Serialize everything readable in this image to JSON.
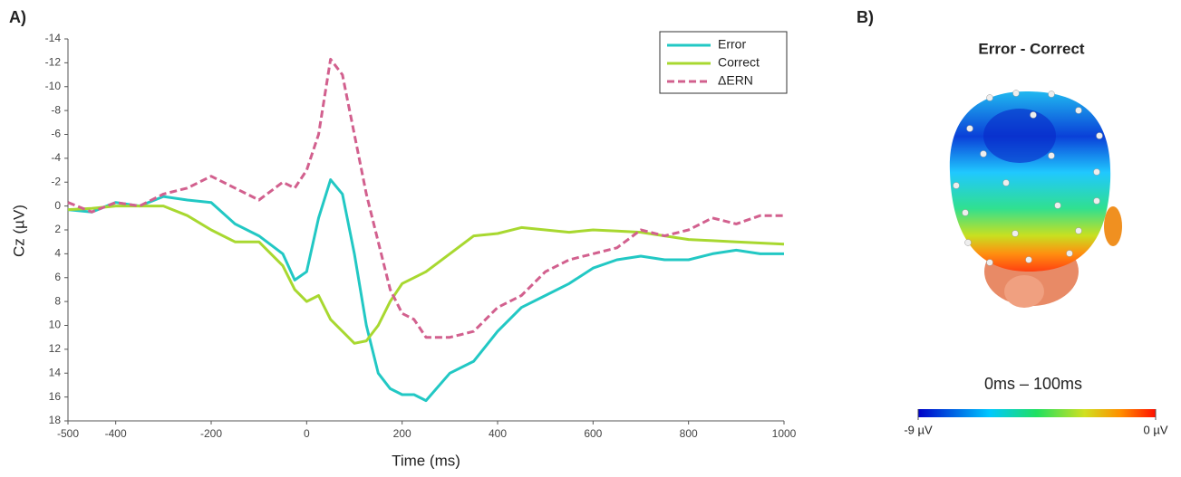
{
  "chart_data": [
    {
      "type": "line",
      "panel_label": "A)",
      "xlabel": "Time (ms)",
      "ylabel": "Cz (µV)",
      "x": [
        -500,
        -450,
        -400,
        -350,
        -300,
        -250,
        -200,
        -150,
        -100,
        -50,
        -25,
        0,
        25,
        50,
        75,
        100,
        125,
        150,
        175,
        200,
        225,
        250,
        300,
        350,
        400,
        450,
        500,
        550,
        600,
        650,
        700,
        750,
        800,
        850,
        900,
        950,
        1000
      ],
      "series": [
        {
          "name": "Error",
          "color": "#22c8c4",
          "dashed": false,
          "values": [
            0.3,
            0.5,
            -0.3,
            0,
            -0.8,
            -0.5,
            -0.3,
            1.5,
            2.5,
            4,
            6.2,
            5.5,
            1,
            -2.2,
            -1,
            4,
            10,
            14,
            15.3,
            15.8,
            15.8,
            16.3,
            14,
            13,
            10.5,
            8.5,
            7.5,
            6.5,
            5.2,
            4.5,
            4.2,
            4.5,
            4.5,
            4,
            3.7,
            4,
            4
          ]
        },
        {
          "name": "Correct",
          "color": "#a8d830",
          "dashed": false,
          "values": [
            0.3,
            0.2,
            0,
            0,
            0,
            0.8,
            2,
            3,
            3,
            5,
            7,
            8,
            7.5,
            9.5,
            10.5,
            11.5,
            11.3,
            10,
            8,
            6.5,
            6,
            5.5,
            4,
            2.5,
            2.3,
            1.8,
            2,
            2.2,
            2,
            2.1,
            2.2,
            2.5,
            2.8,
            2.9,
            3,
            3.1,
            3.2
          ]
        },
        {
          "name": "ΔERN",
          "color": "#d2608e",
          "dashed": true,
          "values": [
            -0.3,
            0.5,
            -0.3,
            0,
            -1,
            -1.5,
            -2.5,
            -1.5,
            -0.5,
            -2,
            -1.5,
            -3,
            -6,
            -12.3,
            -11,
            -6,
            -1,
            3,
            7,
            9,
            9.5,
            11,
            11,
            10.5,
            8.5,
            7.5,
            5.5,
            4.5,
            4,
            3.5,
            2,
            2.5,
            2,
            1,
            1.5,
            0.8,
            0.8
          ]
        }
      ],
      "xlim": [
        -500,
        1000
      ],
      "xticks": [
        -500,
        -400,
        -200,
        0,
        200,
        400,
        600,
        800,
        1000
      ],
      "ylim": [
        -14,
        18
      ],
      "yticks": [
        -14,
        -12,
        -10,
        -8,
        -6,
        -4,
        -2,
        0,
        2,
        4,
        6,
        8,
        10,
        12,
        14,
        16,
        18
      ],
      "y_inverted": true,
      "legend": "upper right"
    },
    {
      "type": "topomap",
      "panel_label": "B)",
      "title": "Error - Correct",
      "subtitle": "0ms – 100ms",
      "clim": [
        -9,
        0
      ],
      "cticks": [
        {
          "value": -9,
          "label": "-9 µV"
        },
        {
          "value": 0,
          "label": "0 µV"
        }
      ],
      "colormap": "jet"
    }
  ]
}
